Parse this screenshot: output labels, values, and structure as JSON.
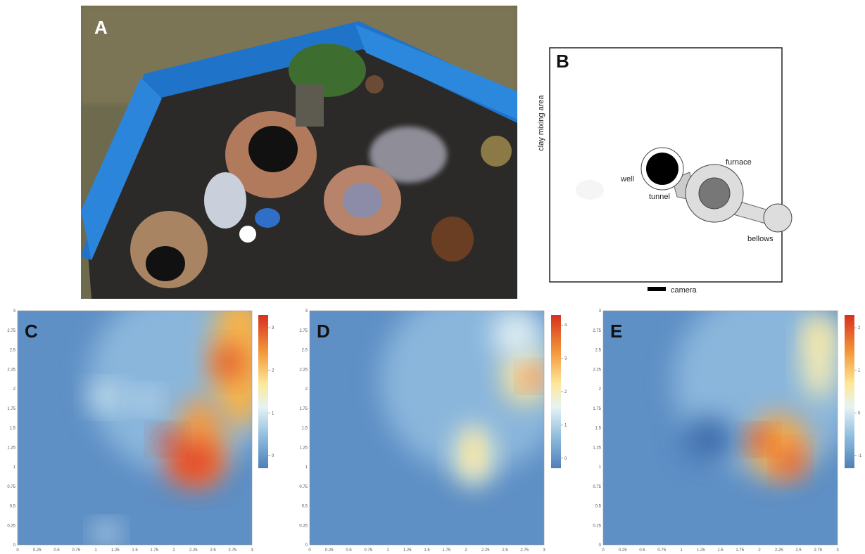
{
  "panel_labels": [
    "A",
    "B",
    "C",
    "D",
    "E"
  ],
  "diagram": {
    "side_label": "clay mixing area",
    "well": "well",
    "tunnel": "tunnel",
    "furnace": "furnace",
    "bellows": "bellows",
    "camera": "camera"
  },
  "heatmaps": {
    "axis_ticks": [
      0,
      0.25,
      0.5,
      0.75,
      1,
      1.25,
      1.5,
      1.75,
      2,
      2.25,
      2.5,
      2.75,
      3
    ],
    "colorbars": [
      {
        "ticks": [
          3,
          2,
          1,
          0
        ]
      },
      {
        "ticks": [
          4,
          3,
          2,
          1,
          0
        ]
      },
      {
        "ticks": [
          2,
          1,
          0,
          -1
        ]
      }
    ]
  }
}
